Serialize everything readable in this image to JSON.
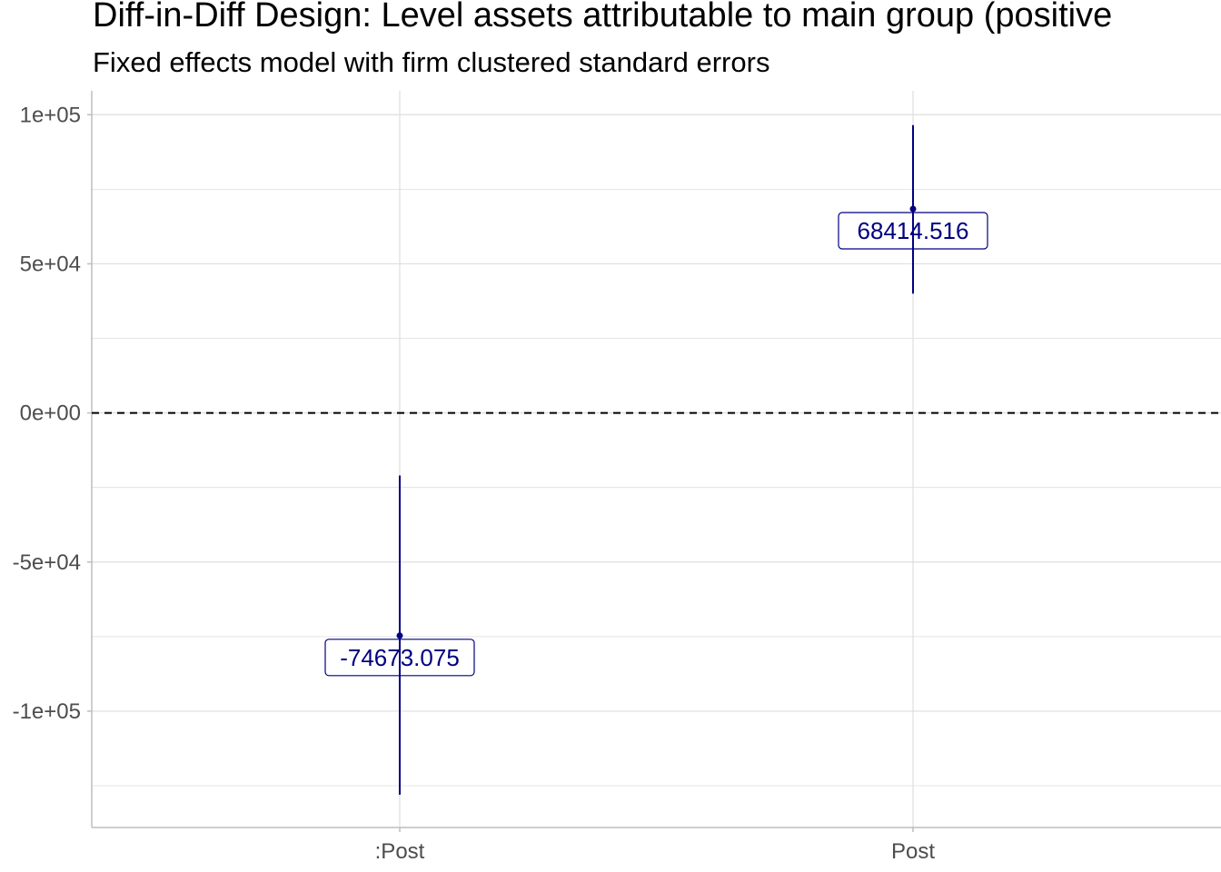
{
  "chart_data": {
    "type": "scatter",
    "title": "Diff-in-Diff Design: Level assets attributable to main group (positive",
    "subtitle": "Fixed effects model with firm clustered standard errors",
    "xlabel": "",
    "ylabel": "",
    "categories": [
      ":Post",
      "Post"
    ],
    "points": [
      {
        "category": ":Post",
        "estimate": -74673.075,
        "ci_low": -128000,
        "ci_high": -21000,
        "label": "-74673.075"
      },
      {
        "category": "Post",
        "estimate": 68414.516,
        "ci_low": 40000,
        "ci_high": 96500,
        "label": "68414.516"
      }
    ],
    "ylim": [
      -139000,
      108000
    ],
    "y_ticks": [
      100000,
      50000,
      0,
      -50000,
      -100000
    ],
    "y_tick_labels": [
      "1e+05",
      "5e+04",
      "0e+00",
      "-5e+04",
      "-1e+05"
    ],
    "reference_line": {
      "y": 0,
      "style": "dashed"
    },
    "grid": true,
    "legend": "none",
    "colors": {
      "series": "#000080",
      "grid": "#dedede",
      "axis": "#bdbdbd",
      "reference": "#000000"
    }
  }
}
